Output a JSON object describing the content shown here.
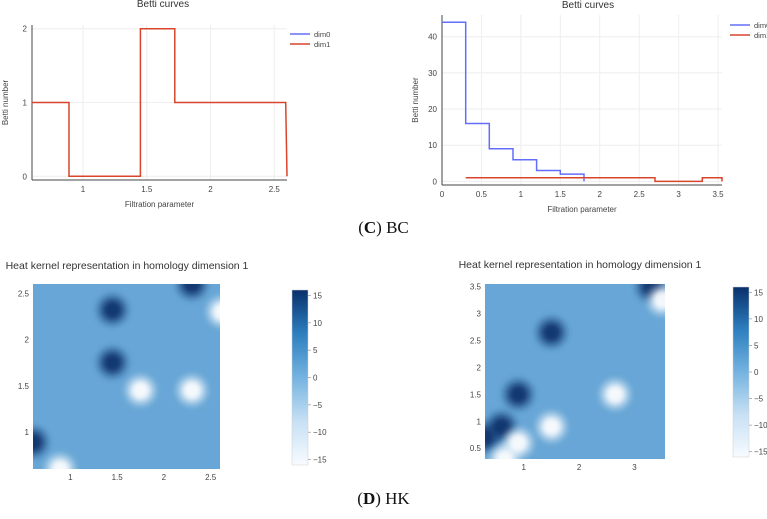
{
  "chart_data": [
    {
      "type": "line",
      "title": "Betti curves",
      "xlabel": "Filtration parameter",
      "ylabel": "Betti number",
      "xlim": [
        0.6,
        2.6
      ],
      "ylim": [
        -0.05,
        2.05
      ],
      "xticks": [
        1,
        1.5,
        2,
        2.5
      ],
      "xtick_labels": [
        "1",
        "1.5",
        "2",
        "2.5"
      ],
      "yticks": [
        0,
        1,
        2
      ],
      "ytick_labels": [
        "0",
        "1",
        "2"
      ],
      "legend_position": "top-right",
      "series": [
        {
          "name": "dim0",
          "color": "#636efa",
          "x": [],
          "y": []
        },
        {
          "name": "dim1",
          "color": "#d9452b",
          "x": [
            0.6,
            0.89,
            0.89,
            1.45,
            1.45,
            1.72,
            1.72,
            2.59,
            2.6
          ],
          "y": [
            1,
            1,
            0,
            0,
            2,
            2,
            1,
            1,
            0
          ]
        }
      ]
    },
    {
      "type": "line",
      "title": "Betti curves",
      "xlabel": "Filtration parameter",
      "ylabel": "Betti number",
      "xlim": [
        0,
        3.55
      ],
      "ylim": [
        -1,
        46
      ],
      "xticks": [
        0,
        0.5,
        1,
        1.5,
        2,
        2.5,
        3,
        3.5
      ],
      "xtick_labels": [
        "0",
        "0.5",
        "1",
        "1.5",
        "2",
        "2.5",
        "3",
        "3.5"
      ],
      "yticks": [
        0,
        10,
        20,
        30,
        40
      ],
      "ytick_labels": [
        "0",
        "10",
        "20",
        "30",
        "40"
      ],
      "legend_position": "top-right",
      "series": [
        {
          "name": "dim0",
          "color": "#636efa",
          "x": [
            0,
            0.3,
            0.3,
            0.6,
            0.6,
            0.9,
            0.9,
            1.2,
            1.2,
            1.5,
            1.5,
            1.8,
            1.8
          ],
          "y": [
            44,
            44,
            16,
            16,
            9,
            9,
            6,
            6,
            3,
            3,
            2,
            2,
            0
          ]
        },
        {
          "name": "dim1",
          "color": "#d9452b",
          "x": [
            0.3,
            2.7,
            2.7,
            3.3,
            3.3,
            3.55,
            3.55
          ],
          "y": [
            1,
            1,
            0,
            0,
            1,
            1,
            0
          ]
        }
      ]
    },
    {
      "type": "heatmap",
      "title": "Heat kernel representation in homology dimension 1",
      "range": [
        0.6,
        2.6
      ],
      "xticks": [
        1,
        1.5,
        2,
        2.5
      ],
      "xtick_labels": [
        "1",
        "1.5",
        "2",
        "2.5"
      ],
      "yticks": [
        1,
        1.5,
        2,
        2.5
      ],
      "ytick_labels": [
        "1",
        "1.5",
        "2",
        "2.5"
      ],
      "colorbar_ticks": [
        15,
        10,
        5,
        0,
        -5,
        -10,
        -15
      ],
      "colorbar_labels": [
        "15",
        "10",
        "5",
        "0",
        "−5",
        "−10",
        "−15"
      ],
      "zmin": -16,
      "zmax": 16,
      "peaks": [
        {
          "x": 1.45,
          "y": 2.32,
          "sign": 1
        },
        {
          "x": 1.45,
          "y": 1.75,
          "sign": 1
        },
        {
          "x": 1.75,
          "y": 1.45,
          "sign": -1
        },
        {
          "x": 2.3,
          "y": 1.45,
          "sign": -1
        },
        {
          "x": 2.3,
          "y": 2.6,
          "sign": 1
        },
        {
          "x": 2.62,
          "y": 2.3,
          "sign": -1
        },
        {
          "x": 0.6,
          "y": 0.89,
          "sign": 1
        },
        {
          "x": 0.89,
          "y": 0.6,
          "sign": -1
        }
      ]
    },
    {
      "type": "heatmap",
      "title": "Heat kernel representation in homology dimension 1",
      "range": [
        0.3,
        3.55
      ],
      "xticks": [
        1,
        2,
        3
      ],
      "xtick_labels": [
        "1",
        "2",
        "3"
      ],
      "yticks": [
        0.5,
        1,
        1.5,
        2,
        2.5,
        3,
        3.5
      ],
      "ytick_labels": [
        "0.5",
        "1",
        "1.5",
        "2",
        "2.5",
        "3",
        "3.5"
      ],
      "colorbar_ticks": [
        15,
        10,
        5,
        0,
        -5,
        -10,
        -15
      ],
      "colorbar_labels": [
        "15",
        "10",
        "5",
        "0",
        "−5",
        "−10",
        "−15"
      ],
      "zmin": -16,
      "zmax": 16,
      "peaks": [
        {
          "x": 0.6,
          "y": 0.9,
          "sign": 1
        },
        {
          "x": 0.9,
          "y": 1.5,
          "sign": 1
        },
        {
          "x": 1.5,
          "y": 2.65,
          "sign": 1
        },
        {
          "x": 3.3,
          "y": 3.5,
          "sign": 1
        },
        {
          "x": 0.9,
          "y": 0.6,
          "sign": -1
        },
        {
          "x": 1.5,
          "y": 0.9,
          "sign": -1
        },
        {
          "x": 2.65,
          "y": 1.5,
          "sign": -1
        },
        {
          "x": 3.5,
          "y": 3.25,
          "sign": -1
        },
        {
          "x": 0.3,
          "y": 0.7,
          "sign": 1
        },
        {
          "x": 0.65,
          "y": 0.3,
          "sign": -1
        }
      ]
    }
  ],
  "captions": {
    "c_letter": "C",
    "c_text": "BC",
    "d_letter": "D",
    "d_text": "HK"
  }
}
